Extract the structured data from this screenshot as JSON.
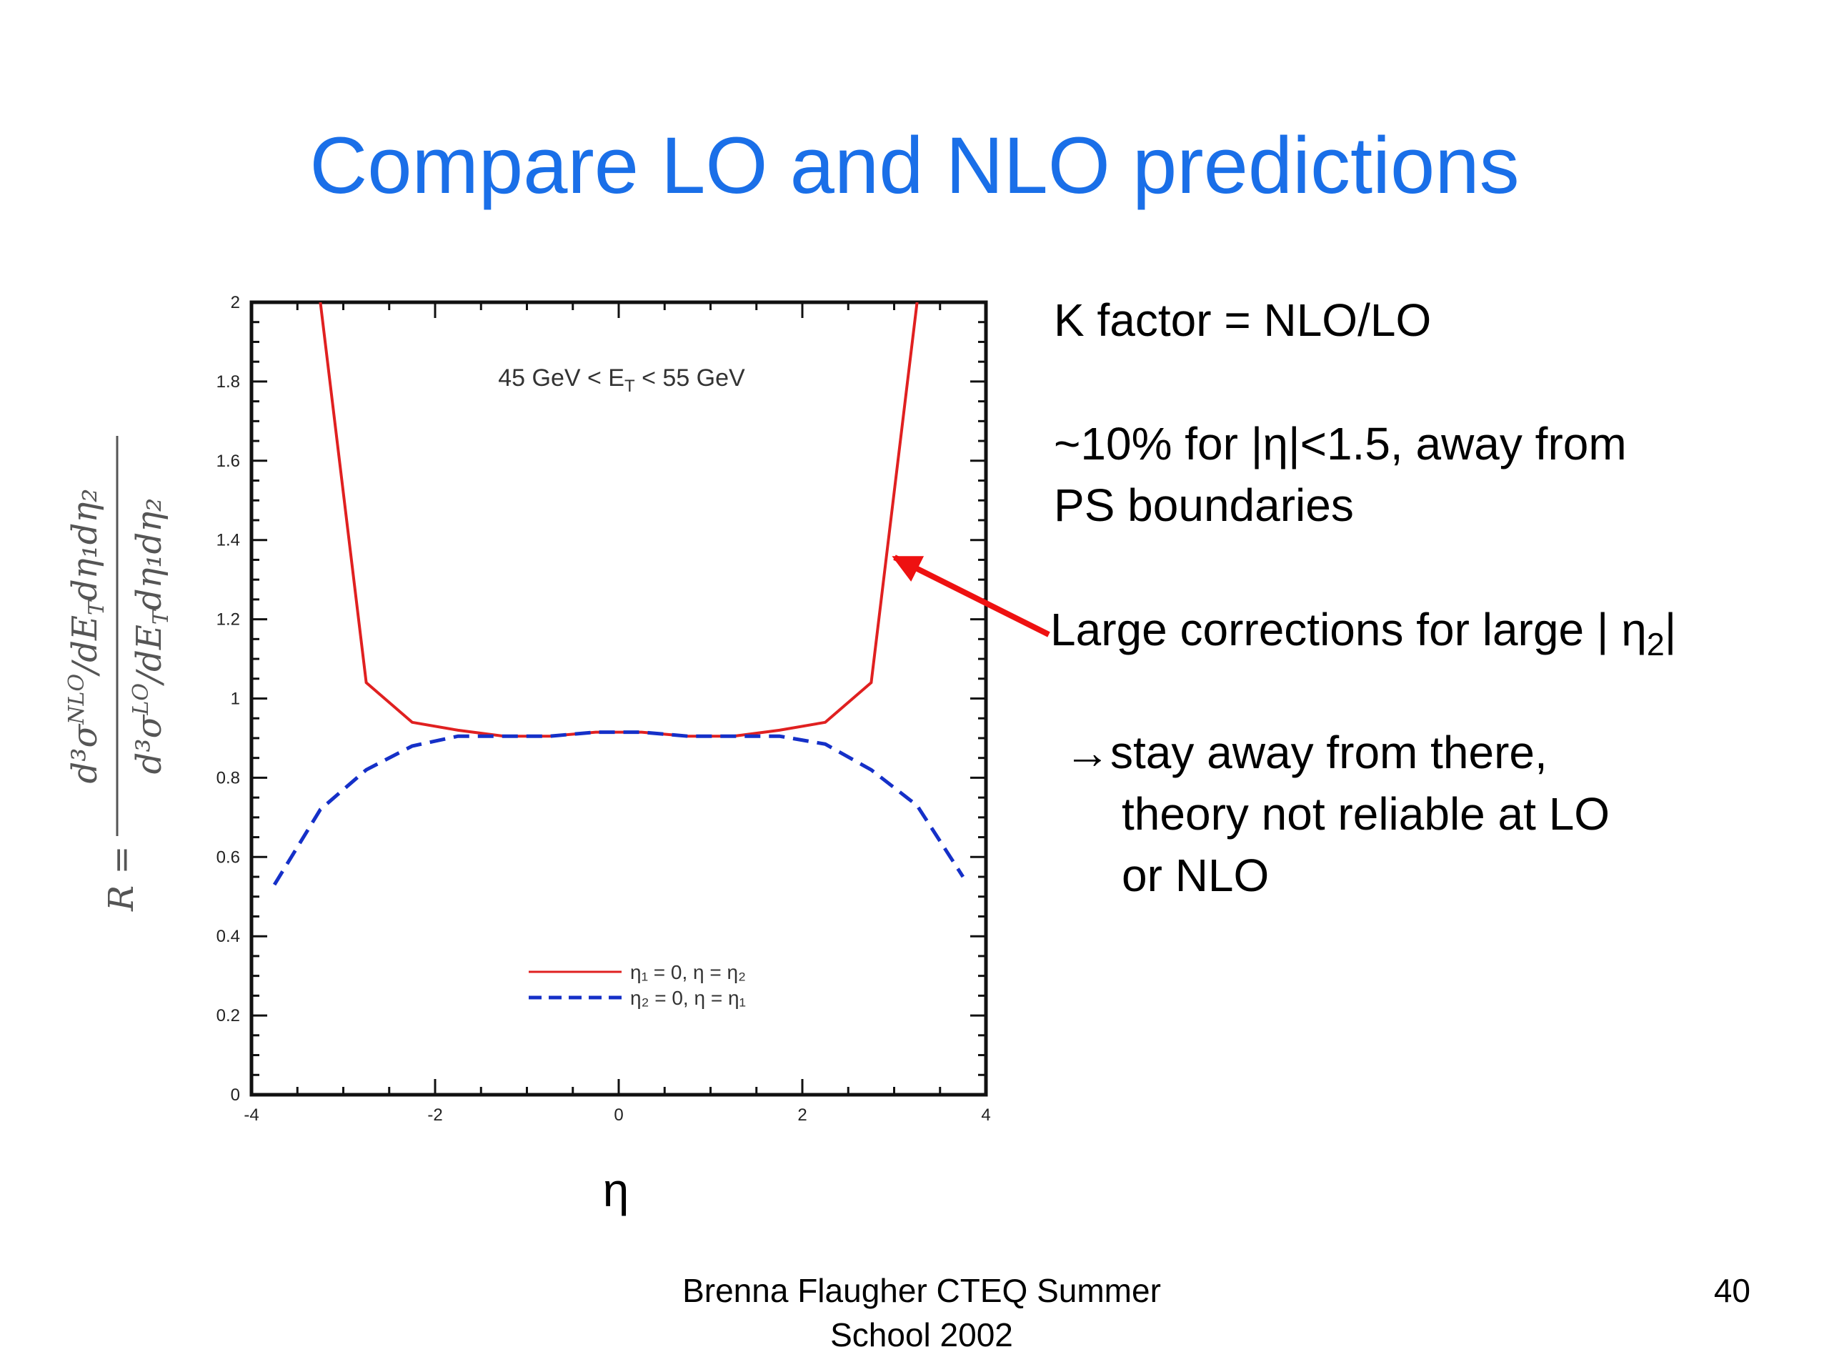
{
  "slide": {
    "title": "Compare LO and NLO predictions",
    "bullets": {
      "k_factor": "K factor = NLO/LO",
      "ten_percent_line1": "~10% for |η|<1.5, away from",
      "ten_percent_line2": "PS boundaries",
      "large_corrections": "Large corrections for large | η",
      "large_corrections_sub": "2",
      "large_corrections_end": "|",
      "stay_away_line1": "→stay away from there,",
      "stay_away_line2": "theory not reliable at LO",
      "stay_away_line3": "or NLO"
    },
    "footer": {
      "line1": "Brenna Flaugher CTEQ Summer",
      "line2": "School 2002",
      "page_number": "40"
    },
    "arrow_color": "#ee1111"
  },
  "chart_data": {
    "type": "line",
    "title": "",
    "annotation": {
      "prefix": "45 GeV < E",
      "sub": "T",
      "suffix": " < 55 GeV"
    },
    "xlabel": "η",
    "ylabel": {
      "lead": "R = ",
      "numerator": "d³σ",
      "num_sup": "NLO",
      "num_rest": "/dE",
      "num_sub": "T",
      "num_tail": "dη₁dη₂",
      "denominator": "d³σ",
      "den_sup": "LO",
      "den_rest": "/dE",
      "den_sub": "T",
      "den_tail": "dη₁dη₂"
    },
    "xlim": [
      -4,
      4
    ],
    "ylim": [
      0,
      2
    ],
    "x_ticks": [
      "-4",
      "-2",
      "0",
      "2",
      "4"
    ],
    "y_ticks": [
      "0",
      "0.2",
      "0.4",
      "0.6",
      "0.8",
      "1",
      "1.2",
      "1.4",
      "1.6",
      "1.8",
      "2"
    ],
    "legend_position": "bottom-center",
    "series": [
      {
        "name": "η₁ = 0, η = η₂",
        "color": "#e02020",
        "style": "solid",
        "x": [
          -3.25,
          -2.75,
          -2.25,
          -1.75,
          -1.25,
          -0.75,
          -0.25,
          0.25,
          0.75,
          1.25,
          1.75,
          2.25,
          2.75,
          3.25
        ],
        "y": [
          2.0,
          1.04,
          0.94,
          0.92,
          0.905,
          0.905,
          0.915,
          0.915,
          0.905,
          0.905,
          0.92,
          0.94,
          1.04,
          2.0
        ]
      },
      {
        "name": "η₂ = 0, η = η₁",
        "color": "#1530c8",
        "style": "dashed",
        "x": [
          -3.75,
          -3.25,
          -2.75,
          -2.25,
          -1.75,
          -1.25,
          -0.75,
          -0.25,
          0.25,
          0.75,
          1.25,
          1.75,
          2.25,
          2.75,
          3.25,
          3.75
        ],
        "y": [
          0.53,
          0.72,
          0.82,
          0.88,
          0.905,
          0.905,
          0.905,
          0.915,
          0.915,
          0.905,
          0.905,
          0.905,
          0.885,
          0.82,
          0.73,
          0.55
        ]
      }
    ]
  }
}
